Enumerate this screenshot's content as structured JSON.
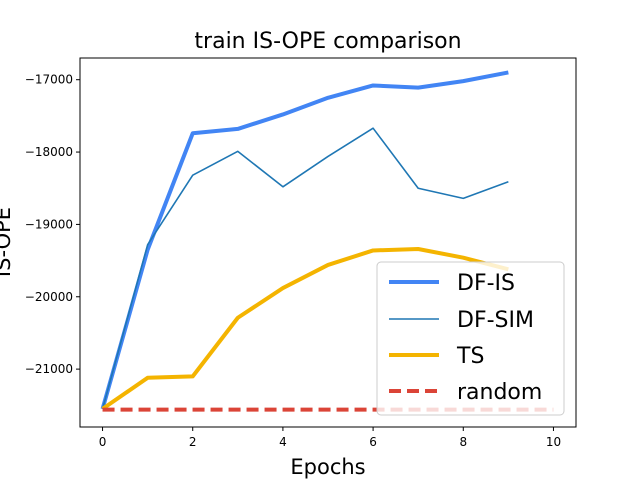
{
  "chart_data": {
    "type": "line",
    "title": "train IS-OPE comparison",
    "xlabel": "Epochs",
    "ylabel": "IS-OPE",
    "xlim": [
      -0.5,
      10.5
    ],
    "ylim": [
      -21800,
      -16700
    ],
    "xticks": [
      0,
      2,
      4,
      6,
      8,
      10
    ],
    "yticks": [
      -21000,
      -20000,
      -19000,
      -18000,
      -17000
    ],
    "xtick_labels": [
      "0",
      "2",
      "4",
      "6",
      "8",
      "10"
    ],
    "ytick_labels": [
      "−21000",
      "−20000",
      "−19000",
      "−18000",
      "−17000"
    ],
    "grid": false,
    "legend_position": "lower-right",
    "series": [
      {
        "name": "DF-IS",
        "color": "#4285f4",
        "style": "solid-thick",
        "x": [
          0,
          1,
          2,
          3,
          4,
          5,
          6,
          7,
          8,
          9
        ],
        "values": [
          -21550,
          -19350,
          -17740,
          -17680,
          -17480,
          -17250,
          -17080,
          -17110,
          -17020,
          -16900
        ]
      },
      {
        "name": "DF-SIM",
        "color": "#1f77b4",
        "style": "solid-thin",
        "x": [
          0,
          1,
          2,
          3,
          4,
          5,
          6,
          7,
          8,
          9
        ],
        "values": [
          -21550,
          -19280,
          -18320,
          -17990,
          -18480,
          -18060,
          -17670,
          -18500,
          -18640,
          -18410
        ]
      },
      {
        "name": "TS",
        "color": "#f4b400",
        "style": "solid-thick",
        "x": [
          0,
          1,
          2,
          3,
          4,
          5,
          6,
          7,
          8,
          9
        ],
        "values": [
          -21550,
          -21120,
          -21100,
          -20290,
          -19880,
          -19560,
          -19360,
          -19340,
          -19460,
          -19620
        ]
      },
      {
        "name": "random",
        "color": "#db4437",
        "style": "dashed-thick",
        "x": [
          0,
          1,
          2,
          3,
          4,
          5,
          6,
          7,
          8,
          9,
          10
        ],
        "values": [
          -21560,
          -21560,
          -21560,
          -21560,
          -21560,
          -21560,
          -21560,
          -21560,
          -21560,
          -21560,
          -21560
        ]
      }
    ]
  }
}
